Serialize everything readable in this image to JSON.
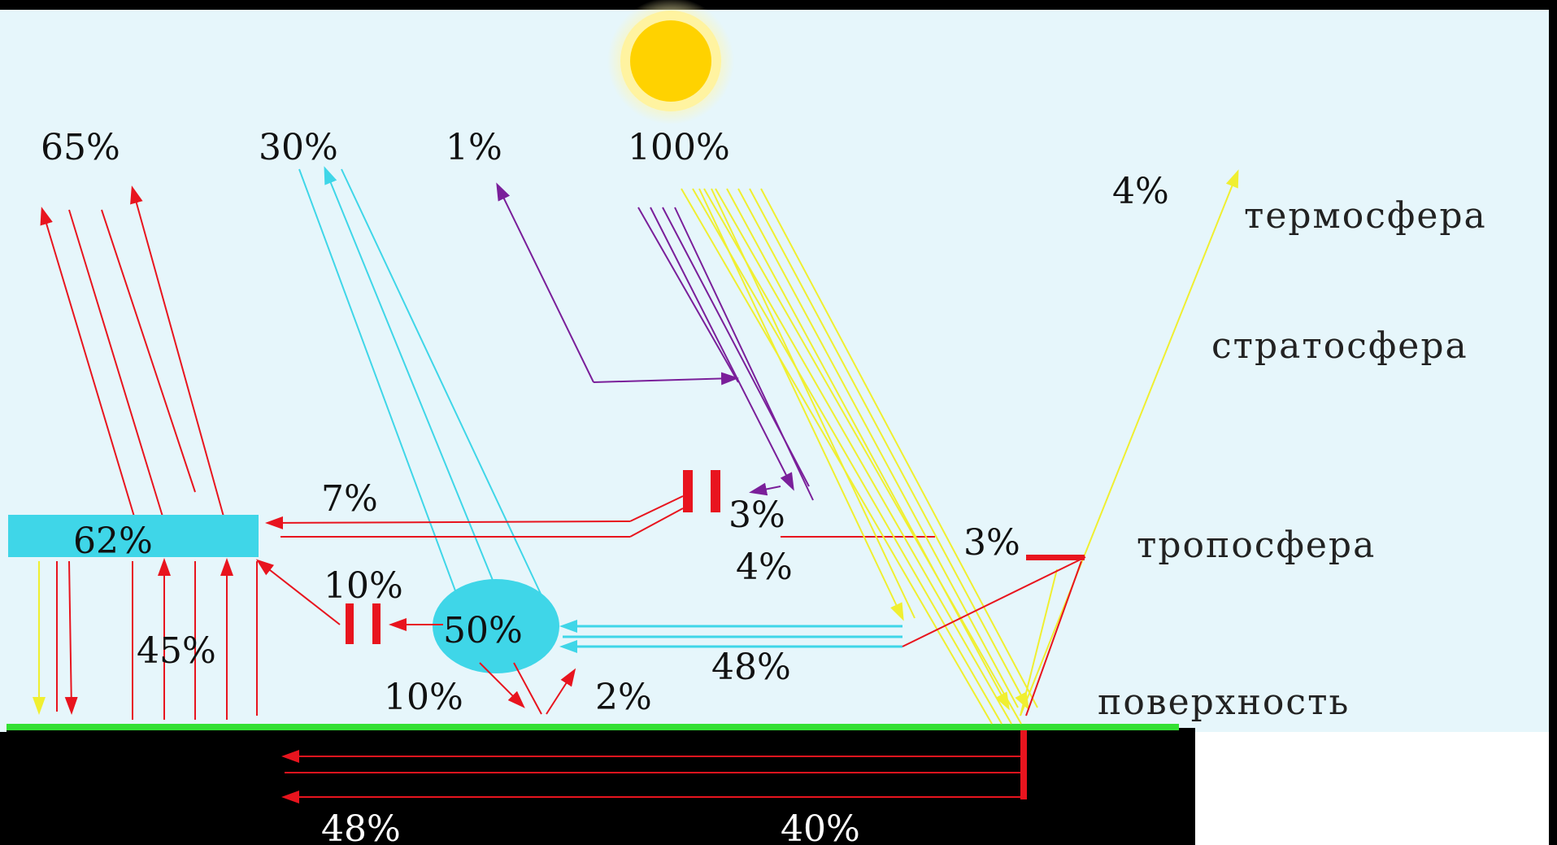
{
  "colors": {
    "sky": "#e6f6fb",
    "ground": "#000000",
    "surface_line": "#33e033",
    "sun_core": "#ffd200",
    "sun_glow": "#fff3a0",
    "infrared": "#e8141e",
    "reflected": "#3fd6e8",
    "ultraviolet": "#7a1f9a",
    "visible": "#f2f27a",
    "cloud": "#3fd6e8"
  },
  "icons": {
    "sun": "sun-icon",
    "cloud": "cloud-icon"
  },
  "labels": {
    "top_65": "65%",
    "top_30": "30%",
    "top_1": "1%",
    "top_100": "100%",
    "right_4": "4%",
    "p7": "7%",
    "p3_ozone": "3%",
    "p62": "62%",
    "p3_trop": "3%",
    "p4": "4%",
    "p10_upper": "10%",
    "p50": "50%",
    "p45": "45%",
    "p48_mid": "48%",
    "p10_lower": "10%",
    "p2": "2%",
    "p48_bottom": "48%",
    "p40_bottom": "40%"
  },
  "layers": {
    "thermosphere": "термосфера",
    "stratosphere": "стратосфера",
    "troposphere": "тропосфера",
    "surface": "поверхность"
  }
}
